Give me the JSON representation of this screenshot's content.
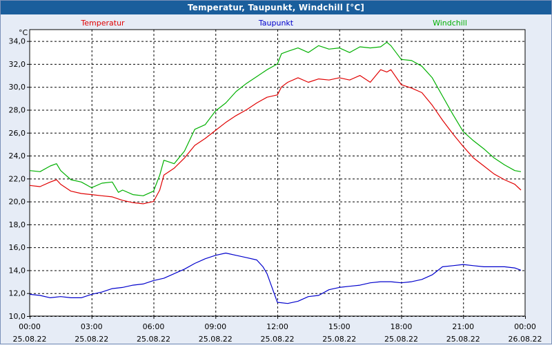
{
  "window": {
    "title": "Temperatur, Taupunkt, Windchill [°C]"
  },
  "colors": {
    "temperatur": "#e00000",
    "taupunkt": "#0000cc",
    "windchill": "#00b000",
    "grid": "#000000",
    "title_bg": "#1a5e9c"
  },
  "chart_data": {
    "type": "line",
    "title": "Temperatur, Taupunkt, Windchill [°C]",
    "ylabel": "°C",
    "xlabel": "",
    "ylim": [
      10,
      35
    ],
    "xlim_hours": [
      0,
      24
    ],
    "grid": true,
    "legend_placement": "top",
    "y_ticks": [
      "10,0",
      "12,0",
      "14,0",
      "16,0",
      "18,0",
      "20,0",
      "22,0",
      "24,0",
      "26,0",
      "28,0",
      "30,0",
      "32,0",
      "34,0"
    ],
    "y_tick_values": [
      10,
      12,
      14,
      16,
      18,
      20,
      22,
      24,
      26,
      28,
      30,
      32,
      34
    ],
    "x_ticks": [
      {
        "hour": 0,
        "time": "00:00",
        "date": "25.08.22"
      },
      {
        "hour": 3,
        "time": "03:00",
        "date": "25.08.22"
      },
      {
        "hour": 6,
        "time": "06:00",
        "date": "25.08.22"
      },
      {
        "hour": 9,
        "time": "09:00",
        "date": "25.08.22"
      },
      {
        "hour": 12,
        "time": "12:00",
        "date": "25.08.22"
      },
      {
        "hour": 15,
        "time": "15:00",
        "date": "25.08.22"
      },
      {
        "hour": 18,
        "time": "18:00",
        "date": "25.08.22"
      },
      {
        "hour": 21,
        "time": "21:00",
        "date": "25.08.22"
      },
      {
        "hour": 24,
        "time": "00:00",
        "date": "26.08.22"
      }
    ],
    "series": [
      {
        "name": "Temperatur",
        "color": "#e00000",
        "x": [
          0,
          0.5,
          1,
          1.3,
          1.5,
          2,
          2.5,
          3,
          3.5,
          4,
          4.5,
          5,
          5.5,
          6,
          6.3,
          6.5,
          7,
          7.5,
          8,
          8.5,
          9,
          9.5,
          10,
          10.5,
          11,
          11.5,
          12,
          12.2,
          12.5,
          13,
          13.5,
          14,
          14.5,
          15,
          15.5,
          16,
          16.5,
          17,
          17.3,
          17.5,
          18,
          18.5,
          19,
          19.5,
          20,
          20.5,
          21,
          21.5,
          22,
          22.5,
          23,
          23.5,
          23.8
        ],
        "values": [
          21.4,
          21.3,
          21.7,
          21.9,
          21.5,
          20.9,
          20.7,
          20.6,
          20.5,
          20.4,
          20.1,
          19.9,
          19.8,
          20.0,
          21.0,
          22.3,
          22.9,
          23.8,
          24.9,
          25.5,
          26.2,
          26.9,
          27.5,
          28.0,
          28.6,
          29.1,
          29.3,
          30.0,
          30.4,
          30.8,
          30.4,
          30.7,
          30.6,
          30.8,
          30.6,
          31.0,
          30.4,
          31.5,
          31.3,
          31.5,
          30.2,
          29.9,
          29.5,
          28.4,
          27.1,
          25.9,
          24.8,
          23.8,
          23.1,
          22.4,
          21.9,
          21.5,
          21.0
        ]
      },
      {
        "name": "Taupunkt",
        "color": "#0000cc",
        "x": [
          0,
          0.5,
          1,
          1.5,
          2,
          2.5,
          3,
          3.5,
          4,
          4.5,
          5,
          5.5,
          6,
          6.5,
          7,
          7.5,
          8,
          8.5,
          9,
          9.5,
          10,
          10.5,
          11,
          11.3,
          11.5,
          11.7,
          12,
          12.5,
          13,
          13.5,
          14,
          14.5,
          15,
          15.5,
          16,
          16.5,
          17,
          17.5,
          18,
          18.5,
          19,
          19.5,
          20,
          20.5,
          21,
          21.5,
          22,
          22.5,
          23,
          23.5,
          23.8
        ],
        "values": [
          11.9,
          11.8,
          11.6,
          11.7,
          11.6,
          11.6,
          11.9,
          12.1,
          12.4,
          12.5,
          12.7,
          12.8,
          13.1,
          13.3,
          13.7,
          14.1,
          14.6,
          15.0,
          15.3,
          15.5,
          15.3,
          15.1,
          14.9,
          14.3,
          13.7,
          12.7,
          11.2,
          11.1,
          11.3,
          11.7,
          11.8,
          12.3,
          12.5,
          12.6,
          12.7,
          12.9,
          13.0,
          13.0,
          12.9,
          13.0,
          13.2,
          13.6,
          14.3,
          14.4,
          14.5,
          14.4,
          14.3,
          14.3,
          14.3,
          14.2,
          14.0
        ]
      },
      {
        "name": "Windchill",
        "color": "#00b000",
        "x": [
          0,
          0.5,
          1,
          1.3,
          1.5,
          2,
          2.5,
          3,
          3.5,
          4,
          4.3,
          4.5,
          5,
          5.5,
          6,
          6.3,
          6.5,
          7,
          7.5,
          8,
          8.5,
          9,
          9.5,
          10,
          10.5,
          11,
          11.5,
          12,
          12.2,
          12.5,
          13,
          13.5,
          14,
          14.5,
          15,
          15.5,
          16,
          16.5,
          17,
          17.3,
          17.5,
          18,
          18.5,
          19,
          19.5,
          20,
          20.5,
          21,
          21.5,
          22,
          22.5,
          23,
          23.5,
          23.8
        ],
        "values": [
          22.7,
          22.6,
          23.1,
          23.3,
          22.7,
          21.9,
          21.7,
          21.2,
          21.6,
          21.7,
          20.8,
          21.0,
          20.6,
          20.5,
          20.9,
          22.3,
          23.6,
          23.3,
          24.4,
          26.3,
          26.7,
          27.9,
          28.6,
          29.6,
          30.3,
          30.9,
          31.5,
          32.0,
          32.9,
          33.1,
          33.4,
          33.0,
          33.6,
          33.3,
          33.4,
          33.0,
          33.5,
          33.4,
          33.5,
          33.9,
          33.6,
          32.4,
          32.3,
          31.8,
          30.8,
          29.2,
          27.6,
          26.1,
          25.3,
          24.6,
          23.8,
          23.2,
          22.7,
          22.6
        ]
      }
    ]
  }
}
